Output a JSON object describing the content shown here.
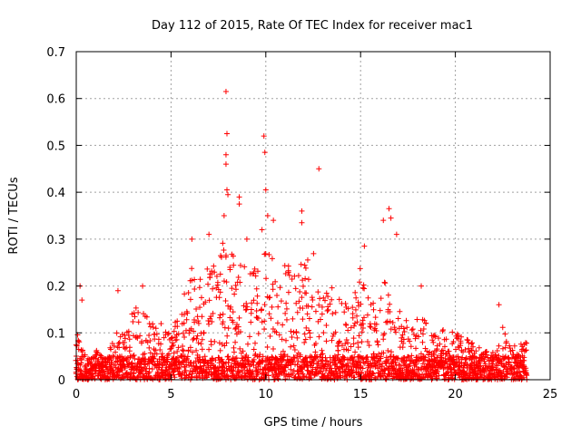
{
  "chart_data": {
    "type": "scatter",
    "title": "Day 112 of 2015, Rate Of TEC Index for receiver mac1",
    "xlabel": "GPS time / hours",
    "ylabel": "ROTI / TECUs",
    "xlim": [
      0,
      25
    ],
    "ylim": [
      0,
      0.7
    ],
    "xticks": [
      "0",
      "5",
      "10",
      "15",
      "20",
      "25"
    ],
    "yticks": [
      "0",
      "0.1",
      "0.2",
      "0.3",
      "0.4",
      "0.5",
      "0.6",
      "0.7"
    ],
    "grid": true,
    "marker": "+",
    "color": "#ff0000",
    "dense_coverage": {
      "x_start": 0,
      "x_end": 23.8,
      "step_hours": 0.05,
      "envelope_x": [
        0.0,
        0.5,
        1.0,
        1.5,
        2.0,
        2.5,
        3.0,
        3.5,
        4.0,
        4.5,
        5.0,
        5.5,
        6.0,
        6.5,
        7.0,
        7.5,
        8.0,
        8.5,
        9.0,
        9.5,
        10.0,
        10.5,
        11.0,
        11.5,
        12.0,
        12.5,
        13.0,
        13.5,
        14.0,
        14.5,
        15.0,
        15.5,
        16.0,
        16.5,
        17.0,
        17.5,
        18.0,
        18.5,
        19.0,
        19.5,
        20.0,
        20.5,
        21.0,
        21.5,
        22.0,
        22.5,
        23.0,
        23.5,
        23.8
      ],
      "envelope_y": [
        0.1,
        0.06,
        0.07,
        0.04,
        0.1,
        0.1,
        0.15,
        0.17,
        0.12,
        0.12,
        0.1,
        0.16,
        0.25,
        0.22,
        0.26,
        0.27,
        0.32,
        0.25,
        0.26,
        0.25,
        0.27,
        0.26,
        0.25,
        0.24,
        0.27,
        0.27,
        0.2,
        0.2,
        0.17,
        0.16,
        0.24,
        0.17,
        0.2,
        0.22,
        0.16,
        0.12,
        0.14,
        0.13,
        0.1,
        0.11,
        0.1,
        0.09,
        0.08,
        0.06,
        0.06,
        0.12,
        0.07,
        0.08,
        0.08
      ]
    },
    "notable_points": [
      {
        "x": 0.2,
        "y": 0.2
      },
      {
        "x": 0.3,
        "y": 0.17
      },
      {
        "x": 2.2,
        "y": 0.19
      },
      {
        "x": 3.5,
        "y": 0.2
      },
      {
        "x": 6.1,
        "y": 0.3
      },
      {
        "x": 7.0,
        "y": 0.31
      },
      {
        "x": 7.8,
        "y": 0.35
      },
      {
        "x": 7.9,
        "y": 0.615
      },
      {
        "x": 7.95,
        "y": 0.525
      },
      {
        "x": 7.9,
        "y": 0.48
      },
      {
        "x": 7.9,
        "y": 0.46
      },
      {
        "x": 7.95,
        "y": 0.405
      },
      {
        "x": 8.0,
        "y": 0.395
      },
      {
        "x": 8.6,
        "y": 0.39
      },
      {
        "x": 8.6,
        "y": 0.375
      },
      {
        "x": 9.0,
        "y": 0.3
      },
      {
        "x": 9.8,
        "y": 0.32
      },
      {
        "x": 9.9,
        "y": 0.52
      },
      {
        "x": 9.95,
        "y": 0.485
      },
      {
        "x": 10.0,
        "y": 0.405
      },
      {
        "x": 10.1,
        "y": 0.35
      },
      {
        "x": 10.4,
        "y": 0.34
      },
      {
        "x": 11.9,
        "y": 0.36
      },
      {
        "x": 11.9,
        "y": 0.335
      },
      {
        "x": 12.8,
        "y": 0.45
      },
      {
        "x": 15.2,
        "y": 0.285
      },
      {
        "x": 16.2,
        "y": 0.34
      },
      {
        "x": 16.5,
        "y": 0.365
      },
      {
        "x": 16.6,
        "y": 0.345
      },
      {
        "x": 16.9,
        "y": 0.31
      },
      {
        "x": 18.2,
        "y": 0.2
      },
      {
        "x": 22.3,
        "y": 0.16
      }
    ]
  }
}
